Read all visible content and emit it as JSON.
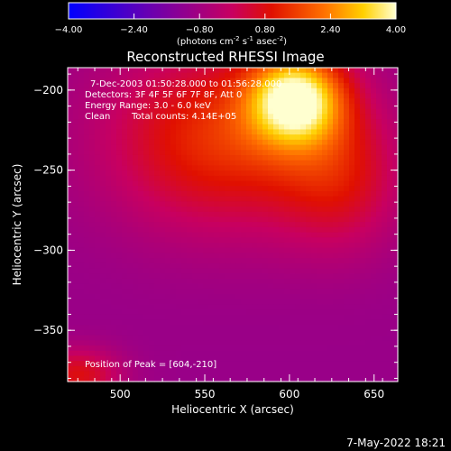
{
  "chart_data": {
    "type": "heatmap",
    "title": "Reconstructed RHESSI Image",
    "xlabel": "Heliocentric X (arcsec)",
    "ylabel": "Heliocentric Y (arcsec)",
    "xlim": [
      469,
      664
    ],
    "ylim": [
      -382,
      -186
    ],
    "x_ticks": [
      500,
      550,
      600,
      650
    ],
    "y_ticks": [
      -200,
      -250,
      -300,
      -350
    ],
    "colorbar": {
      "range": [
        -4.0,
        4.0
      ],
      "ticks": [
        "-4.00",
        "-2.40",
        "-0.80",
        "0.80",
        "2.40",
        "4.00"
      ],
      "label_parts": {
        "pre": "(photons cm",
        "exp1": "-2",
        "mid1": " s",
        "exp2": "-1",
        "mid2": " asec",
        "exp3": "-2",
        "post": ")"
      }
    },
    "annotations": {
      "time": "7-Dec-2003 01:50:28.000 to 01:56:28.000",
      "detectors": "Detectors: 3F 4F 5F 6F 7F 8F, Att 0",
      "energy": "Energy Range: 3.0 - 6.0 keV",
      "method": "Clean",
      "counts": "Total counts: 4.14E+05",
      "peak": "Position of Peak = [604,-210]"
    },
    "peak": {
      "x": 604,
      "y": -210
    },
    "sources": [
      {
        "x": 604,
        "y": -205,
        "amplitude": 4.3,
        "sigma_x": 20,
        "sigma_y": 20
      },
      {
        "x": 560,
        "y": -230,
        "amplitude": 2.4,
        "sigma_x": 48,
        "sigma_y": 40
      },
      {
        "x": 630,
        "y": -255,
        "amplitude": 1.5,
        "sigma_x": 26,
        "sigma_y": 32
      },
      {
        "x": 475,
        "y": -378,
        "amplitude": 1.8,
        "sigma_x": 18,
        "sigma_y": 12
      }
    ],
    "background_level": -1.0
  },
  "footer": {
    "timestamp": "7-May-2022 18:21"
  }
}
